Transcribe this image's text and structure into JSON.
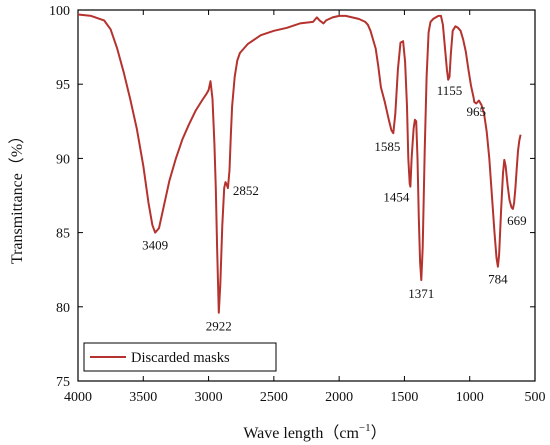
{
  "chart_data": {
    "type": "line",
    "xlabel": "Wave length（cm",
    "xlabel_sup": "−1",
    "xlabel_close": "）",
    "ylabel": "Transmittance（%）",
    "xlim": [
      4000,
      500
    ],
    "ylim": [
      75,
      100
    ],
    "x_ticks": [
      4000,
      3500,
      3000,
      2500,
      2000,
      1500,
      1000,
      500
    ],
    "y_ticks": [
      75,
      80,
      85,
      90,
      95,
      100
    ],
    "x_tick_labels": [
      "4000",
      "3500",
      "3000",
      "2500",
      "2000",
      "1500",
      "1000",
      "500"
    ],
    "y_tick_labels": [
      "75",
      "80",
      "85",
      "90",
      "95",
      "100"
    ],
    "grid": false,
    "legend": {
      "position": "bottom-left",
      "entries": [
        "Discarded masks"
      ]
    },
    "line_color": "#b5332e",
    "series": [
      {
        "name": "Discarded masks",
        "x": [
          4000,
          3900,
          3800,
          3750,
          3700,
          3650,
          3600,
          3550,
          3500,
          3460,
          3430,
          3409,
          3380,
          3350,
          3300,
          3250,
          3200,
          3150,
          3100,
          3050,
          3020,
          3000,
          2985,
          2970,
          2955,
          2945,
          2935,
          2922,
          2910,
          2895,
          2880,
          2870,
          2860,
          2852,
          2840,
          2830,
          2820,
          2800,
          2780,
          2760,
          2700,
          2600,
          2500,
          2400,
          2300,
          2200,
          2170,
          2150,
          2120,
          2100,
          2050,
          2000,
          1950,
          1900,
          1850,
          1800,
          1780,
          1760,
          1720,
          1700,
          1680,
          1650,
          1620,
          1600,
          1585,
          1570,
          1550,
          1530,
          1510,
          1495,
          1480,
          1470,
          1460,
          1454,
          1445,
          1430,
          1420,
          1410,
          1400,
          1390,
          1380,
          1371,
          1360,
          1345,
          1330,
          1315,
          1300,
          1280,
          1260,
          1240,
          1220,
          1205,
          1190,
          1175,
          1165,
          1155,
          1145,
          1130,
          1110,
          1090,
          1070,
          1050,
          1030,
          1010,
          990,
          970,
          965,
          950,
          930,
          910,
          890,
          870,
          850,
          830,
          810,
          795,
          784,
          775,
          760,
          745,
          735,
          725,
          710,
          695,
          680,
          669,
          660,
          650,
          640,
          630,
          620,
          610
        ],
        "y": [
          99.7,
          99.6,
          99.3,
          98.7,
          97.4,
          95.8,
          94.0,
          92.0,
          89.5,
          87.0,
          85.5,
          85.0,
          85.3,
          86.5,
          88.5,
          90.0,
          91.3,
          92.3,
          93.2,
          93.9,
          94.3,
          94.6,
          95.2,
          94.0,
          91.0,
          88.0,
          84.0,
          79.6,
          81.5,
          85.5,
          88.0,
          88.4,
          88.2,
          88.0,
          89.2,
          91.5,
          93.5,
          95.5,
          96.6,
          97.1,
          97.7,
          98.3,
          98.6,
          98.8,
          99.1,
          99.2,
          99.5,
          99.3,
          99.1,
          99.3,
          99.5,
          99.6,
          99.6,
          99.5,
          99.4,
          99.2,
          99.0,
          98.6,
          97.4,
          96.2,
          94.8,
          93.8,
          92.6,
          91.9,
          91.7,
          93.0,
          96.0,
          97.8,
          97.9,
          96.5,
          93.5,
          90.0,
          88.3,
          88.1,
          90.0,
          92.0,
          92.6,
          92.5,
          90.0,
          86.0,
          83.0,
          81.8,
          84.0,
          90.5,
          95.5,
          98.5,
          99.2,
          99.4,
          99.5,
          99.6,
          99.6,
          99.0,
          97.5,
          96.0,
          95.3,
          95.5,
          97.0,
          98.6,
          98.9,
          98.8,
          98.6,
          98.0,
          97.2,
          96.0,
          94.9,
          94.1,
          93.8,
          93.7,
          93.9,
          93.6,
          93.0,
          91.8,
          90.0,
          87.5,
          85.0,
          83.3,
          82.7,
          83.5,
          86.5,
          89.0,
          89.9,
          89.5,
          88.2,
          87.2,
          86.7,
          86.6,
          87.0,
          88.0,
          89.3,
          90.5,
          91.2,
          91.6
        ]
      }
    ],
    "annotations": [
      {
        "text": "3409",
        "x": 3409,
        "y": 85.0
      },
      {
        "text": "2922",
        "x": 2922,
        "y": 79.6
      },
      {
        "text": "2852",
        "x": 2852,
        "y": 88.0
      },
      {
        "text": "1585",
        "x": 1585,
        "y": 91.7
      },
      {
        "text": "1454",
        "x": 1454,
        "y": 88.1
      },
      {
        "text": "1371",
        "x": 1371,
        "y": 81.8
      },
      {
        "text": "1155",
        "x": 1155,
        "y": 95.5
      },
      {
        "text": "965",
        "x": 965,
        "y": 93.8
      },
      {
        "text": "784",
        "x": 784,
        "y": 82.7
      },
      {
        "text": "669",
        "x": 669,
        "y": 86.6
      }
    ]
  }
}
